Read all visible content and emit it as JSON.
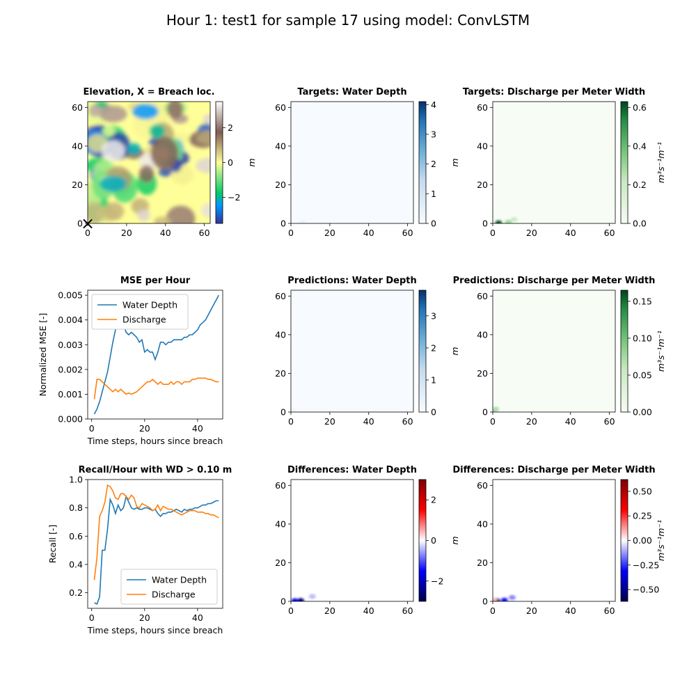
{
  "figure": {
    "title": "Hour 1: test1 for sample 17 using model: ConvLSTM"
  },
  "colors": {
    "water_depth": "#1f77b4",
    "discharge": "#ff7f0e"
  },
  "chart_data": [
    {
      "id": "elevation",
      "type": "heatmap",
      "title": "Elevation, X = Breach loc.",
      "xlim": [
        0,
        63
      ],
      "ylim": [
        0,
        63
      ],
      "xticks": [
        "0",
        "20",
        "40",
        "60"
      ],
      "yticks": [
        "0",
        "20",
        "40",
        "60"
      ],
      "colorbar": {
        "label": "m",
        "colormap": "terrain",
        "range": [
          -3.5,
          3.5
        ],
        "ticks": [
          "2",
          "0",
          "−2"
        ]
      },
      "marker": {
        "label": "×",
        "x": 0,
        "y": 0
      }
    },
    {
      "id": "target-wd",
      "type": "heatmap",
      "title": "Targets: Water Depth",
      "xlim": [
        0,
        63
      ],
      "ylim": [
        0,
        63
      ],
      "xticks": [
        "0",
        "20",
        "40",
        "60"
      ],
      "yticks": [
        "0",
        "20",
        "40",
        "60"
      ],
      "colorbar": {
        "label": "m",
        "colormap": "Blues",
        "range": [
          0,
          4.1
        ],
        "ticks": [
          "4",
          "3",
          "2",
          "1",
          "0"
        ]
      },
      "blobs": [
        {
          "x": 6,
          "y": 0.5,
          "value": 0.4
        }
      ]
    },
    {
      "id": "target-q",
      "type": "heatmap",
      "title": "Targets: Discharge per Meter Width",
      "xlim": [
        0,
        63
      ],
      "ylim": [
        0,
        63
      ],
      "xticks": [
        "0",
        "20",
        "40",
        "60"
      ],
      "yticks": [
        "0",
        "20",
        "40",
        "60"
      ],
      "colorbar": {
        "label": "m³s⁻¹m⁻¹",
        "colormap": "Greens",
        "range": [
          0,
          0.63
        ],
        "ticks": [
          "0.6",
          "0.4",
          "0.2",
          "0.0"
        ]
      },
      "blobs": [
        {
          "x": 3,
          "y": 0.3,
          "value": 0.6
        },
        {
          "x": 8,
          "y": 0.6,
          "value": 0.3
        },
        {
          "x": 11,
          "y": 2,
          "value": 0.2
        }
      ]
    },
    {
      "id": "mse",
      "type": "line",
      "title": "MSE per Hour",
      "xlabel": "Time steps, hours since breach",
      "ylabel": "Normalized MSE [-]",
      "xlim": [
        -1.5,
        49.5
      ],
      "ylim": [
        0,
        0.0052
      ],
      "xticks": [
        0,
        20,
        40
      ],
      "yticks": [
        0.0,
        0.001,
        0.002,
        0.003,
        0.004,
        0.005
      ],
      "ytick_labels": [
        "0.000",
        "0.001",
        "0.002",
        "0.003",
        "0.004",
        "0.005"
      ],
      "legend": "top-left",
      "x": [
        1,
        2,
        3,
        4,
        5,
        6,
        7,
        8,
        9,
        10,
        11,
        12,
        13,
        14,
        15,
        16,
        17,
        18,
        19,
        20,
        21,
        22,
        23,
        24,
        25,
        26,
        27,
        28,
        29,
        30,
        31,
        32,
        33,
        34,
        35,
        36,
        37,
        38,
        39,
        40,
        41,
        42,
        43,
        44,
        45,
        46,
        47,
        48
      ],
      "series": [
        {
          "name": "Water Depth",
          "values": [
            0.0002,
            0.0004,
            0.0007,
            0.0011,
            0.0015,
            0.0019,
            0.0025,
            0.0031,
            0.0036,
            0.004,
            0.0042,
            0.0038,
            0.0035,
            0.0034,
            0.0035,
            0.0034,
            0.0033,
            0.0031,
            0.0032,
            0.0027,
            0.0028,
            0.0027,
            0.0027,
            0.0024,
            0.0027,
            0.0031,
            0.0031,
            0.003,
            0.0031,
            0.0031,
            0.0032,
            0.0032,
            0.0032,
            0.0032,
            0.0033,
            0.0033,
            0.0034,
            0.0034,
            0.0035,
            0.0036,
            0.0038,
            0.0039,
            0.004,
            0.0042,
            0.0044,
            0.0046,
            0.0048,
            0.005
          ]
        },
        {
          "name": "Discharge",
          "values": [
            0.0008,
            0.0016,
            0.0016,
            0.0015,
            0.0014,
            0.0013,
            0.0012,
            0.0011,
            0.0012,
            0.0011,
            0.0012,
            0.0011,
            0.001,
            0.00105,
            0.001,
            0.00105,
            0.0011,
            0.0012,
            0.0013,
            0.0014,
            0.0015,
            0.0015,
            0.0016,
            0.0015,
            0.0014,
            0.0015,
            0.0014,
            0.0014,
            0.0014,
            0.0015,
            0.0014,
            0.0015,
            0.0015,
            0.0014,
            0.0015,
            0.0015,
            0.0015,
            0.0016,
            0.0016,
            0.00165,
            0.00165,
            0.00165,
            0.00165,
            0.0016,
            0.0016,
            0.00155,
            0.0015,
            0.0015
          ]
        }
      ]
    },
    {
      "id": "pred-wd",
      "type": "heatmap",
      "title": "Predictions: Water Depth",
      "xlim": [
        0,
        63
      ],
      "ylim": [
        0,
        63
      ],
      "xticks": [
        "0",
        "20",
        "40",
        "60"
      ],
      "yticks": [
        "0",
        "20",
        "40",
        "60"
      ],
      "colorbar": {
        "label": "m",
        "colormap": "Blues",
        "range": [
          0,
          3.8
        ],
        "ticks": [
          "3",
          "2",
          "1",
          "0"
        ]
      },
      "blobs": [
        {
          "x": 1,
          "y": 0.5,
          "value": 0.3
        }
      ]
    },
    {
      "id": "pred-q",
      "type": "heatmap",
      "title": "Predictions: Discharge per Meter Width",
      "xlim": [
        0,
        63
      ],
      "ylim": [
        0,
        63
      ],
      "xticks": [
        "0",
        "20",
        "40",
        "60"
      ],
      "yticks": [
        "0",
        "20",
        "40",
        "60"
      ],
      "colorbar": {
        "label": "m³s⁻¹m⁻¹",
        "colormap": "Greens",
        "range": [
          0,
          0.165
        ],
        "ticks": [
          "0.15",
          "0.10",
          "0.05",
          "0.00"
        ]
      },
      "blobs": [
        {
          "x": 0.5,
          "y": 0.5,
          "value": 0.08
        },
        {
          "x": 1.5,
          "y": 1.5,
          "value": 0.07
        }
      ]
    },
    {
      "id": "recall",
      "type": "line",
      "title": "Recall/Hour with WD > 0.10 m",
      "xlabel": "Time steps, hours since breach",
      "ylabel": "Recall [-]",
      "xlim": [
        -1.5,
        49.5
      ],
      "ylim": [
        0.09,
        1.0
      ],
      "xticks": [
        0,
        20,
        40
      ],
      "yticks": [
        0.2,
        0.4,
        0.6,
        0.8,
        1.0
      ],
      "ytick_labels": [
        "0.2",
        "0.4",
        "0.6",
        "0.8",
        "1.0"
      ],
      "legend": "bottom-right",
      "x": [
        1,
        2,
        3,
        4,
        5,
        6,
        7,
        8,
        9,
        10,
        11,
        12,
        13,
        14,
        15,
        16,
        17,
        18,
        19,
        20,
        21,
        22,
        23,
        24,
        25,
        26,
        27,
        28,
        29,
        30,
        31,
        32,
        33,
        34,
        35,
        36,
        37,
        38,
        39,
        40,
        41,
        42,
        43,
        44,
        45,
        46,
        47,
        48
      ],
      "series": [
        {
          "name": "Water Depth",
          "values": [
            0.13,
            0.12,
            0.17,
            0.5,
            0.5,
            0.65,
            0.86,
            0.82,
            0.76,
            0.82,
            0.78,
            0.8,
            0.88,
            0.84,
            0.8,
            0.79,
            0.8,
            0.79,
            0.79,
            0.8,
            0.8,
            0.79,
            0.78,
            0.79,
            0.76,
            0.74,
            0.76,
            0.76,
            0.77,
            0.77,
            0.78,
            0.79,
            0.78,
            0.77,
            0.79,
            0.78,
            0.79,
            0.79,
            0.8,
            0.8,
            0.81,
            0.82,
            0.82,
            0.83,
            0.83,
            0.84,
            0.85,
            0.85
          ]
        },
        {
          "name": "Discharge",
          "values": [
            0.29,
            0.45,
            0.74,
            0.78,
            0.84,
            0.96,
            0.95,
            0.92,
            0.87,
            0.86,
            0.9,
            0.9,
            0.88,
            0.86,
            0.89,
            0.87,
            0.81,
            0.8,
            0.83,
            0.82,
            0.81,
            0.8,
            0.78,
            0.79,
            0.82,
            0.78,
            0.81,
            0.8,
            0.79,
            0.79,
            0.78,
            0.77,
            0.76,
            0.75,
            0.76,
            0.77,
            0.78,
            0.78,
            0.78,
            0.77,
            0.77,
            0.77,
            0.76,
            0.76,
            0.75,
            0.75,
            0.74,
            0.73
          ]
        }
      ]
    },
    {
      "id": "diff-wd",
      "type": "heatmap",
      "title": "Differences: Water Depth",
      "xlim": [
        0,
        63
      ],
      "ylim": [
        0,
        63
      ],
      "xticks": [
        "0",
        "20",
        "40",
        "60"
      ],
      "yticks": [
        "0",
        "20",
        "40",
        "60"
      ],
      "colorbar": {
        "label": "m",
        "colormap": "seismic",
        "range": [
          -3,
          3
        ],
        "ticks": [
          "2",
          "0",
          "−2"
        ]
      },
      "blobs": [
        {
          "x": 5,
          "y": 0.4,
          "value": -2.6
        },
        {
          "x": 2,
          "y": 0.3,
          "value": -1.5
        },
        {
          "x": 11,
          "y": 2.5,
          "value": -0.4
        }
      ]
    },
    {
      "id": "diff-q",
      "type": "heatmap",
      "title": "Differences: Discharge per Meter Width",
      "xlim": [
        0,
        63
      ],
      "ylim": [
        0,
        63
      ],
      "xticks": [
        "0",
        "20",
        "40",
        "60"
      ],
      "yticks": [
        "0",
        "20",
        "40",
        "60"
      ],
      "colorbar": {
        "label": "m³s⁻¹m⁻¹",
        "colormap": "seismic",
        "range": [
          -0.62,
          0.62
        ],
        "ticks": [
          "0.50",
          "0.25",
          "0.00",
          "−0.25",
          "−0.50"
        ]
      },
      "blobs": [
        {
          "x": 2,
          "y": 0.3,
          "value": -0.55
        },
        {
          "x": 6,
          "y": 0.6,
          "value": -0.3
        },
        {
          "x": 10,
          "y": 2,
          "value": -0.15
        },
        {
          "x": 0.5,
          "y": 0.5,
          "value": 0.1
        }
      ]
    }
  ]
}
